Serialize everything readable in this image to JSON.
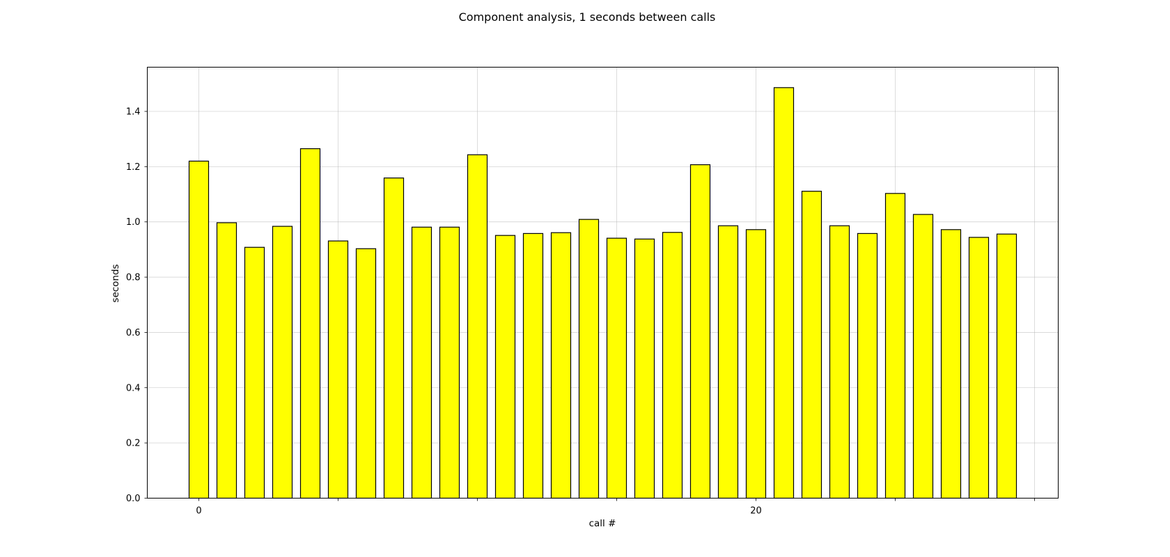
{
  "chart_data": {
    "type": "bar",
    "title": "Component analysis, 1 seconds between calls",
    "xlabel": "call #",
    "ylabel": "seconds",
    "x": [
      0,
      1,
      2,
      3,
      4,
      5,
      6,
      7,
      8,
      9,
      10,
      11,
      12,
      13,
      14,
      15,
      16,
      17,
      18,
      19,
      20,
      21,
      22,
      23,
      24,
      25,
      26,
      27,
      28,
      29
    ],
    "values": [
      1.22,
      0.997,
      0.908,
      0.984,
      1.265,
      0.931,
      0.903,
      1.159,
      0.981,
      0.981,
      1.243,
      0.951,
      0.958,
      0.961,
      1.009,
      0.941,
      0.938,
      0.962,
      1.207,
      0.986,
      0.972,
      1.486,
      1.111,
      0.986,
      0.958,
      1.103,
      1.027,
      0.972,
      0.944,
      0.956
    ],
    "xlim": [
      -1.85,
      30.85
    ],
    "ylim": [
      0,
      1.56
    ],
    "xticks": [
      0,
      20
    ],
    "xgrid": [
      0,
      5,
      10,
      15,
      20,
      25,
      30
    ],
    "yticks": [
      0.0,
      0.2,
      0.4,
      0.6,
      0.8,
      1.0,
      1.2,
      1.4
    ],
    "grid": true,
    "bar_color": "#ffff00",
    "edge_color": "#000000"
  }
}
